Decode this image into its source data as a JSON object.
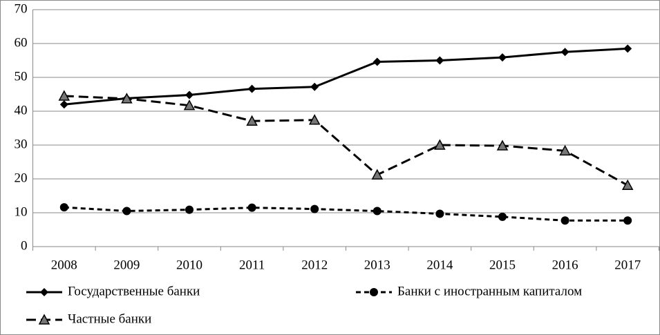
{
  "chart_data": {
    "type": "line",
    "categories": [
      "2008",
      "2009",
      "2010",
      "2011",
      "2012",
      "2013",
      "2014",
      "2015",
      "2016",
      "2017"
    ],
    "series": [
      {
        "name": "Государственные банки",
        "color": "#000000",
        "marker": "diamond",
        "dash": "solid",
        "values": [
          42,
          43.8,
          44.8,
          46.6,
          47.2,
          54.6,
          55,
          55.9,
          57.5,
          58.5
        ]
      },
      {
        "name": "Банки с иностранным капиталом",
        "color": "#000000",
        "marker": "circle",
        "dash": "short",
        "values": [
          11.6,
          10.5,
          10.9,
          11.5,
          11.1,
          10.5,
          9.7,
          8.8,
          7.7,
          7.7
        ]
      },
      {
        "name": "Частные банки",
        "color": "#000000",
        "marker": "triangle",
        "dash": "long",
        "values": [
          44.5,
          43.7,
          41.7,
          37.1,
          37.4,
          21.2,
          30,
          29.8,
          28.3,
          18.1
        ]
      }
    ],
    "ylim": [
      0,
      70
    ],
    "yticks": [
      0,
      10,
      20,
      30,
      40,
      50,
      60,
      70
    ],
    "grid": true,
    "legend": "bottom"
  }
}
